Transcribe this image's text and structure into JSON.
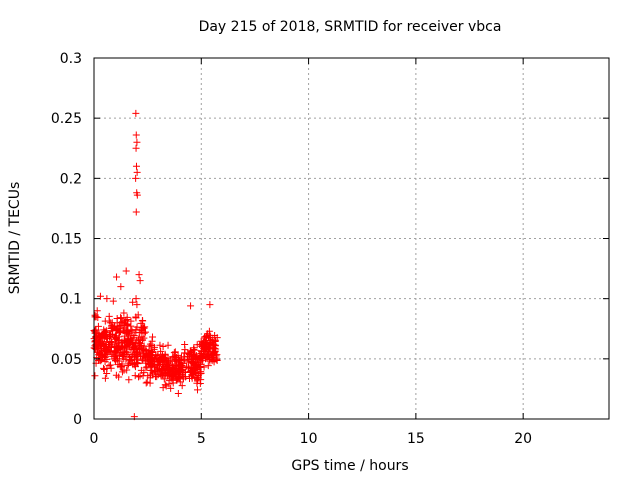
{
  "chart_data": {
    "type": "scatter",
    "title": "Day 215 of 2018, SRMTID for receiver vbca",
    "xlabel": "GPS time / hours",
    "ylabel": "SRMTID / TECUs",
    "xlim": [
      0,
      24
    ],
    "ylim": [
      0,
      0.3
    ],
    "xticks": [
      0,
      5,
      10,
      15,
      20
    ],
    "yticks": [
      0,
      0.05,
      0.1,
      0.15,
      0.2,
      0.25,
      0.3
    ],
    "grid": true,
    "marker": "+",
    "color": "#ff0000",
    "series": [
      {
        "name": "SRMTID",
        "x": [
          1.95,
          1.97,
          2.0,
          1.96,
          1.98,
          2.01,
          1.94,
          1.99,
          2.02,
          1.97,
          1.96,
          2.0,
          1.5,
          1.05,
          1.25,
          2.1,
          2.15,
          0.3,
          0.6,
          0.9,
          1.8,
          0.1,
          0.15,
          1.88,
          2.05,
          1.92,
          1.9,
          5.4,
          4.5
        ],
        "y": [
          0.254,
          0.236,
          0.23,
          0.225,
          0.21,
          0.205,
          0.2,
          0.188,
          0.186,
          0.172,
          0.1,
          0.095,
          0.123,
          0.118,
          0.11,
          0.12,
          0.115,
          0.102,
          0.1,
          0.098,
          0.097,
          0.085,
          0.09,
          0.002,
          0.052,
          0.036,
          0.045,
          0.095,
          0.094
        ]
      }
    ],
    "cloud": [
      {
        "x_range": [
          0.0,
          1.0
        ],
        "y_center": 0.062,
        "y_spread": 0.02,
        "count": 160
      },
      {
        "x_range": [
          1.0,
          1.6
        ],
        "y_center": 0.065,
        "y_spread": 0.024,
        "count": 110
      },
      {
        "x_range": [
          1.6,
          2.4
        ],
        "y_center": 0.058,
        "y_spread": 0.022,
        "count": 110
      },
      {
        "x_range": [
          2.4,
          3.2
        ],
        "y_center": 0.048,
        "y_spread": 0.016,
        "count": 110
      },
      {
        "x_range": [
          3.2,
          4.2
        ],
        "y_center": 0.042,
        "y_spread": 0.013,
        "count": 140
      },
      {
        "x_range": [
          4.2,
          5.0
        ],
        "y_center": 0.046,
        "y_spread": 0.015,
        "count": 110
      },
      {
        "x_range": [
          5.0,
          5.75
        ],
        "y_center": 0.058,
        "y_spread": 0.013,
        "count": 110
      }
    ]
  }
}
